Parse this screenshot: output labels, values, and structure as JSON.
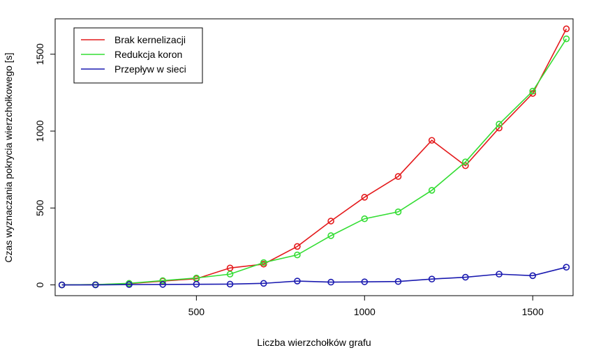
{
  "chart_data": {
    "type": "line",
    "title": "",
    "xlabel": "Liczba wierzchołków grafu",
    "ylabel": "Czas wyznaczania pokrycia wierzchołkowego [s]",
    "xlim": [
      80,
      1620
    ],
    "ylim": [
      -70,
      1730
    ],
    "xticks": [
      500,
      1000,
      1500
    ],
    "yticks": [
      0,
      500,
      1000,
      1500
    ],
    "grid": false,
    "legend_position": "top-left",
    "x": [
      100,
      200,
      300,
      400,
      500,
      600,
      700,
      800,
      900,
      1000,
      1100,
      1200,
      1300,
      1400,
      1500,
      1600
    ],
    "series": [
      {
        "name": "Brak kernelizacji",
        "color": "#e41a1c",
        "values": [
          0,
          2,
          8,
          25,
          40,
          110,
          135,
          250,
          415,
          570,
          705,
          940,
          775,
          1020,
          1245,
          1665
        ]
      },
      {
        "name": "Redukcja koron",
        "color": "#33dd33",
        "values": [
          0,
          2,
          10,
          28,
          45,
          70,
          145,
          195,
          320,
          430,
          475,
          615,
          800,
          1045,
          1260,
          1600
        ]
      },
      {
        "name": "Przepływ w sieci",
        "color": "#1a1ab0",
        "values": [
          0,
          0,
          2,
          3,
          4,
          5,
          10,
          25,
          18,
          20,
          22,
          38,
          50,
          70,
          60,
          115
        ]
      }
    ]
  }
}
